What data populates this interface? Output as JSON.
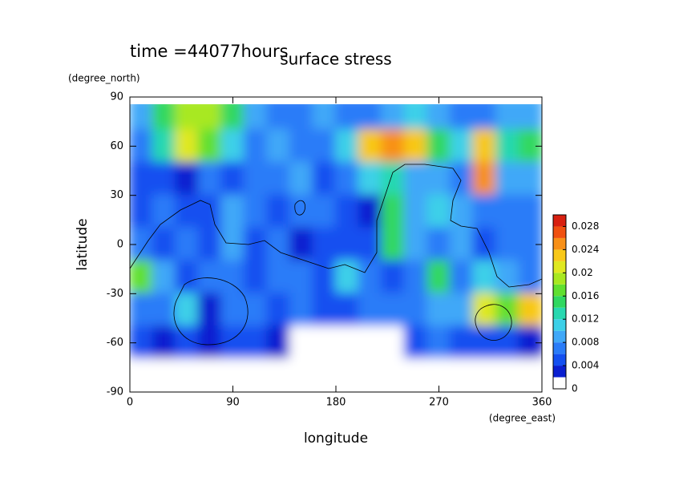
{
  "chart_data": {
    "type": "contour",
    "title": "surface stress",
    "subtitle": "time =44077hours",
    "xlabel": "longitude",
    "ylabel": "latitude",
    "x_unit": "(degree_east)",
    "y_unit": "(degree_north)",
    "xlim": [
      0,
      360
    ],
    "ylim": [
      -90,
      90
    ],
    "xticks": [
      0,
      90,
      180,
      270,
      360
    ],
    "yticks": [
      -90,
      -60,
      -30,
      0,
      30,
      60,
      90
    ],
    "x": [
      10,
      30,
      50,
      70,
      90,
      110,
      130,
      150,
      170,
      190,
      210,
      230,
      250,
      270,
      290,
      310,
      330,
      350
    ],
    "y": [
      80,
      60,
      40,
      20,
      0,
      -20,
      -40,
      -60,
      -80
    ],
    "z": [
      [
        0.008,
        0.014,
        0.018,
        0.018,
        0.014,
        0.008,
        0.006,
        0.006,
        0.008,
        0.006,
        0.006,
        0.008,
        0.01,
        0.008,
        0.006,
        0.006,
        0.008,
        0.008
      ],
      [
        0.006,
        0.012,
        0.02,
        0.016,
        0.01,
        0.006,
        0.008,
        0.006,
        0.006,
        0.01,
        0.022,
        0.024,
        0.022,
        0.014,
        0.01,
        0.022,
        0.012,
        0.014
      ],
      [
        0.004,
        0.004,
        0.002,
        0.006,
        0.004,
        0.006,
        0.006,
        0.008,
        0.004,
        0.006,
        0.01,
        0.012,
        0.008,
        0.008,
        0.006,
        0.024,
        0.008,
        0.008
      ],
      [
        0.004,
        0.006,
        0.004,
        0.004,
        0.008,
        0.006,
        0.004,
        0.006,
        0.006,
        0.004,
        0.002,
        0.014,
        0.008,
        0.01,
        0.008,
        0.006,
        0.006,
        0.006
      ],
      [
        0.006,
        0.004,
        0.006,
        0.004,
        0.008,
        0.004,
        0.006,
        0.002,
        0.004,
        0.004,
        0.004,
        0.014,
        0.008,
        0.006,
        0.008,
        0.004,
        0.006,
        0.006
      ],
      [
        0.016,
        0.008,
        0.004,
        0.006,
        0.006,
        0.004,
        0.006,
        0.006,
        0.004,
        0.01,
        0.006,
        0.004,
        0.006,
        0.014,
        0.006,
        0.01,
        0.008,
        0.006
      ],
      [
        0.006,
        0.006,
        0.01,
        0.002,
        0.006,
        0.006,
        0.004,
        0.006,
        0.004,
        0.004,
        0.006,
        0.006,
        0.006,
        0.008,
        0.008,
        0.02,
        0.016,
        0.022
      ],
      [
        0.004,
        0.002,
        0.004,
        0.002,
        0.004,
        0.004,
        0.002,
        0,
        0,
        0,
        0,
        0,
        0.004,
        0.006,
        0.004,
        0.004,
        0.004,
        0.002
      ],
      [
        0,
        0,
        0,
        0,
        0,
        0,
        0,
        0,
        0,
        0,
        0,
        0,
        0,
        0,
        0,
        0,
        0,
        0
      ]
    ],
    "clim": [
      0,
      0.03
    ],
    "cticks": [
      0,
      0.004,
      0.008,
      0.012,
      0.016,
      0.02,
      0.024,
      0.028
    ],
    "levels": [
      0,
      0.002,
      0.004,
      0.006,
      0.008,
      0.01,
      0.012,
      0.014,
      0.016,
      0.018,
      0.02,
      0.022,
      0.024,
      0.026,
      0.028,
      0.03
    ],
    "colors": [
      "#ffffff",
      "#0a1fd0",
      "#1450f0",
      "#2a7cf8",
      "#40a8f8",
      "#3cd0e8",
      "#28d8b0",
      "#30d860",
      "#60e030",
      "#a8e820",
      "#e0e820",
      "#f8c818",
      "#f89018",
      "#f05010",
      "#d82010"
    ]
  }
}
